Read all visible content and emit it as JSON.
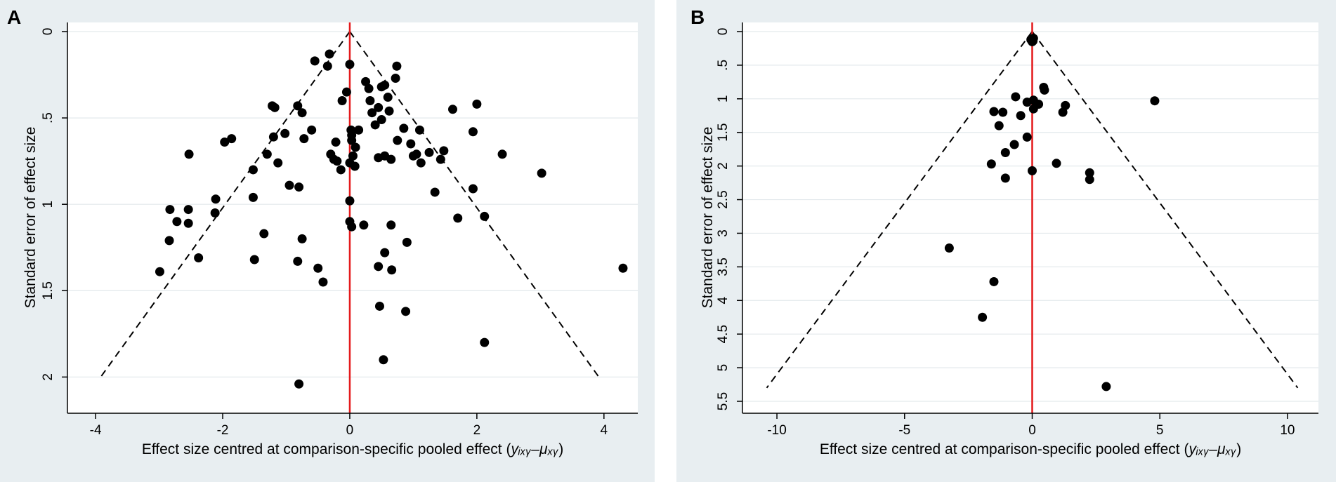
{
  "chart_data": [
    {
      "type": "scatter",
      "panel_label": "A",
      "title": "",
      "xlabel_prefix": "Effect size centred at comparison-specific pooled effect (",
      "xlabel_math": "yᵢₓᵧ–μₓᵧ",
      "xlabel_suffix": ")",
      "ylabel": "Standard error of effect size",
      "xlim": [
        -4.2,
        4.4
      ],
      "ylim": [
        0,
        2.1
      ],
      "y_reversed": true,
      "x_ticks": [
        -4,
        -2,
        0,
        2,
        4
      ],
      "x_tick_labels": [
        "-4",
        "-2",
        "0",
        "2",
        "4"
      ],
      "y_ticks": [
        0,
        0.5,
        1,
        1.5,
        2
      ],
      "y_tick_labels": [
        "0",
        ".5",
        "1",
        "1.5",
        "2"
      ],
      "funnel_apex": [
        0,
        0
      ],
      "funnel_base": {
        "x_left": -3.92,
        "x_right": 3.92,
        "y": 2
      },
      "null_line_x": 0,
      "points": [
        [
          -0.55,
          0.17
        ],
        [
          -0.32,
          0.13
        ],
        [
          -0.35,
          0.2
        ],
        [
          0.0,
          0.19
        ],
        [
          0.74,
          0.2
        ],
        [
          0.72,
          0.27
        ],
        [
          0.25,
          0.29
        ],
        [
          0.5,
          0.32
        ],
        [
          0.55,
          0.31
        ],
        [
          0.3,
          0.33
        ],
        [
          -0.05,
          0.35
        ],
        [
          0.6,
          0.38
        ],
        [
          -0.12,
          0.4
        ],
        [
          0.32,
          0.4
        ],
        [
          -1.22,
          0.43
        ],
        [
          -1.18,
          0.44
        ],
        [
          -0.82,
          0.43
        ],
        [
          -0.75,
          0.47
        ],
        [
          0.35,
          0.47
        ],
        [
          0.45,
          0.44
        ],
        [
          0.62,
          0.46
        ],
        [
          1.62,
          0.45
        ],
        [
          2.0,
          0.42
        ],
        [
          0.5,
          0.51
        ],
        [
          0.4,
          0.54
        ],
        [
          -0.6,
          0.57
        ],
        [
          0.02,
          0.57
        ],
        [
          0.14,
          0.57
        ],
        [
          0.85,
          0.56
        ],
        [
          1.1,
          0.57
        ],
        [
          1.94,
          0.58
        ],
        [
          -1.2,
          0.61
        ],
        [
          -1.02,
          0.59
        ],
        [
          -1.86,
          0.62
        ],
        [
          -1.97,
          0.64
        ],
        [
          -0.72,
          0.62
        ],
        [
          0.03,
          0.6
        ],
        [
          0.03,
          0.63
        ],
        [
          0.75,
          0.63
        ],
        [
          0.96,
          0.65
        ],
        [
          -0.22,
          0.64
        ],
        [
          0.09,
          0.67
        ],
        [
          -2.53,
          0.71
        ],
        [
          -1.3,
          0.71
        ],
        [
          -0.3,
          0.71
        ],
        [
          -0.25,
          0.74
        ],
        [
          -0.2,
          0.75
        ],
        [
          -1.13,
          0.76
        ],
        [
          0.05,
          0.72
        ],
        [
          0.0,
          0.76
        ],
        [
          0.45,
          0.73
        ],
        [
          0.55,
          0.72
        ],
        [
          0.65,
          0.74
        ],
        [
          1.0,
          0.72
        ],
        [
          1.05,
          0.71
        ],
        [
          1.25,
          0.7
        ],
        [
          1.43,
          0.74
        ],
        [
          1.48,
          0.69
        ],
        [
          2.4,
          0.71
        ],
        [
          0.08,
          0.78
        ],
        [
          -0.14,
          0.8
        ],
        [
          -1.52,
          0.8
        ],
        [
          3.02,
          0.82
        ],
        [
          1.12,
          0.76
        ],
        [
          -0.8,
          0.9
        ],
        [
          -0.95,
          0.89
        ],
        [
          1.34,
          0.93
        ],
        [
          1.94,
          0.91
        ],
        [
          -1.52,
          0.96
        ],
        [
          -2.11,
          0.97
        ],
        [
          0.0,
          0.98
        ],
        [
          -2.83,
          1.03
        ],
        [
          -2.54,
          1.03
        ],
        [
          -2.12,
          1.05
        ],
        [
          2.12,
          1.07
        ],
        [
          1.7,
          1.08
        ],
        [
          -2.72,
          1.1
        ],
        [
          -2.54,
          1.11
        ],
        [
          0.0,
          1.1
        ],
        [
          0.22,
          1.12
        ],
        [
          0.03,
          1.13
        ],
        [
          0.65,
          1.12
        ],
        [
          -1.35,
          1.17
        ],
        [
          -2.84,
          1.21
        ],
        [
          -0.75,
          1.2
        ],
        [
          0.9,
          1.22
        ],
        [
          0.55,
          1.28
        ],
        [
          -2.38,
          1.31
        ],
        [
          -1.5,
          1.32
        ],
        [
          -0.82,
          1.33
        ],
        [
          0.45,
          1.36
        ],
        [
          -0.5,
          1.37
        ],
        [
          0.66,
          1.38
        ],
        [
          -2.99,
          1.39
        ],
        [
          -0.42,
          1.45
        ],
        [
          4.3,
          1.37
        ],
        [
          0.47,
          1.59
        ],
        [
          0.88,
          1.62
        ],
        [
          2.12,
          1.8
        ],
        [
          0.53,
          1.9
        ],
        [
          -0.8,
          2.04
        ]
      ]
    },
    {
      "type": "scatter",
      "panel_label": "B",
      "title": "",
      "xlabel_prefix": "Effect size centred at comparison-specific pooled effect (",
      "xlabel_math": "yᵢₓᵧ–μₓᵧ",
      "xlabel_suffix": ")",
      "ylabel": "Standard error of effect size",
      "xlim": [
        -10.8,
        10.8
      ],
      "ylim": [
        0,
        5.5
      ],
      "y_reversed": true,
      "x_ticks": [
        -10,
        -5,
        0,
        5,
        10
      ],
      "x_tick_labels": [
        "-10",
        "-5",
        "0",
        "5",
        "10"
      ],
      "y_ticks": [
        0,
        0.5,
        1,
        1.5,
        2,
        2.5,
        3,
        3.5,
        4,
        4.5,
        5,
        5.5
      ],
      "y_tick_labels": [
        "0",
        ".5",
        "1",
        "1.5",
        "2",
        "2.5",
        "3",
        "3.5",
        "4",
        "4.5",
        "5",
        "5.5"
      ],
      "funnel_apex": [
        0,
        0
      ],
      "funnel_base": {
        "x_left": -10.4,
        "x_right": 10.4,
        "y": 5.3
      },
      "null_line_x": 0,
      "points": [
        [
          -0.05,
          0.12
        ],
        [
          0.05,
          0.1
        ],
        [
          0.0,
          0.15
        ],
        [
          0.03,
          0.14
        ],
        [
          0.45,
          0.83
        ],
        [
          0.48,
          0.87
        ],
        [
          -0.65,
          0.97
        ],
        [
          0.05,
          1.02
        ],
        [
          -0.2,
          1.05
        ],
        [
          0.25,
          1.08
        ],
        [
          0.05,
          1.15
        ],
        [
          1.2,
          1.2
        ],
        [
          1.3,
          1.1
        ],
        [
          4.8,
          1.03
        ],
        [
          -1.5,
          1.19
        ],
        [
          -1.15,
          1.2
        ],
        [
          -0.45,
          1.25
        ],
        [
          -1.3,
          1.4
        ],
        [
          -0.2,
          1.57
        ],
        [
          -0.7,
          1.68
        ],
        [
          -1.05,
          1.8
        ],
        [
          -1.6,
          1.97
        ],
        [
          0.95,
          1.96
        ],
        [
          0.0,
          2.07
        ],
        [
          2.25,
          2.1
        ],
        [
          -1.05,
          2.18
        ],
        [
          2.25,
          2.2
        ],
        [
          -3.25,
          3.22
        ],
        [
          -1.5,
          3.72
        ],
        [
          -1.95,
          4.25
        ],
        [
          2.9,
          5.28
        ]
      ]
    }
  ]
}
